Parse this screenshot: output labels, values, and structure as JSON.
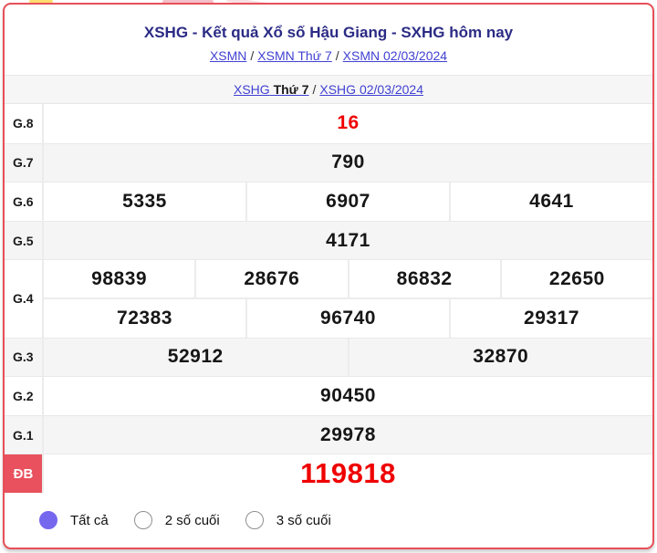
{
  "header": {
    "title": "XSHG - Kết quả Xổ số Hậu Giang - SXHG hôm nay",
    "separator": "/",
    "breadcrumb1": [
      {
        "label": "XSMN"
      },
      {
        "label": "XSMN Thứ 7"
      },
      {
        "label": "XSMN 02/03/2024"
      }
    ]
  },
  "band": {
    "link_prefix": "XSHG",
    "bold_suffix": "Thứ 7",
    "separator": "/",
    "date_link": "XSHG 02/03/2024"
  },
  "results_table": {
    "rows": [
      {
        "label": "G.8",
        "shade": false,
        "highlight": true,
        "groups": [
          [
            "16"
          ]
        ]
      },
      {
        "label": "G.7",
        "shade": true,
        "highlight": false,
        "groups": [
          [
            "790"
          ]
        ]
      },
      {
        "label": "G.6",
        "shade": false,
        "highlight": false,
        "groups": [
          [
            "5335",
            "6907",
            "4641"
          ]
        ]
      },
      {
        "label": "G.5",
        "shade": true,
        "highlight": false,
        "groups": [
          [
            "4171"
          ]
        ]
      },
      {
        "label": "G.4",
        "shade": false,
        "highlight": false,
        "groups": [
          [
            "98839",
            "28676",
            "86832",
            "22650"
          ],
          [
            "72383",
            "96740",
            "29317"
          ]
        ]
      },
      {
        "label": "G.3",
        "shade": true,
        "highlight": false,
        "groups": [
          [
            "52912",
            "32870"
          ]
        ]
      },
      {
        "label": "G.2",
        "shade": false,
        "highlight": false,
        "groups": [
          [
            "90450"
          ]
        ]
      },
      {
        "label": "G.1",
        "shade": true,
        "highlight": false,
        "groups": [
          [
            "29978"
          ]
        ]
      },
      {
        "label": "ĐB",
        "shade": false,
        "highlight": true,
        "special": true,
        "groups": [
          [
            "119818"
          ]
        ]
      }
    ]
  },
  "filters": {
    "options": [
      {
        "label": "Tất cả",
        "selected": true
      },
      {
        "label": "2 số cuối",
        "selected": false
      },
      {
        "label": "3 số cuối",
        "selected": false
      }
    ]
  },
  "colors": {
    "card_border": "#e74f58",
    "title": "#2b2b85",
    "link": "#4141d3",
    "highlight_number": "#ef0000",
    "special_label_bg": "#e8515d",
    "radio_selected": "#7568ee",
    "row_shade": "#f5f5f5"
  }
}
